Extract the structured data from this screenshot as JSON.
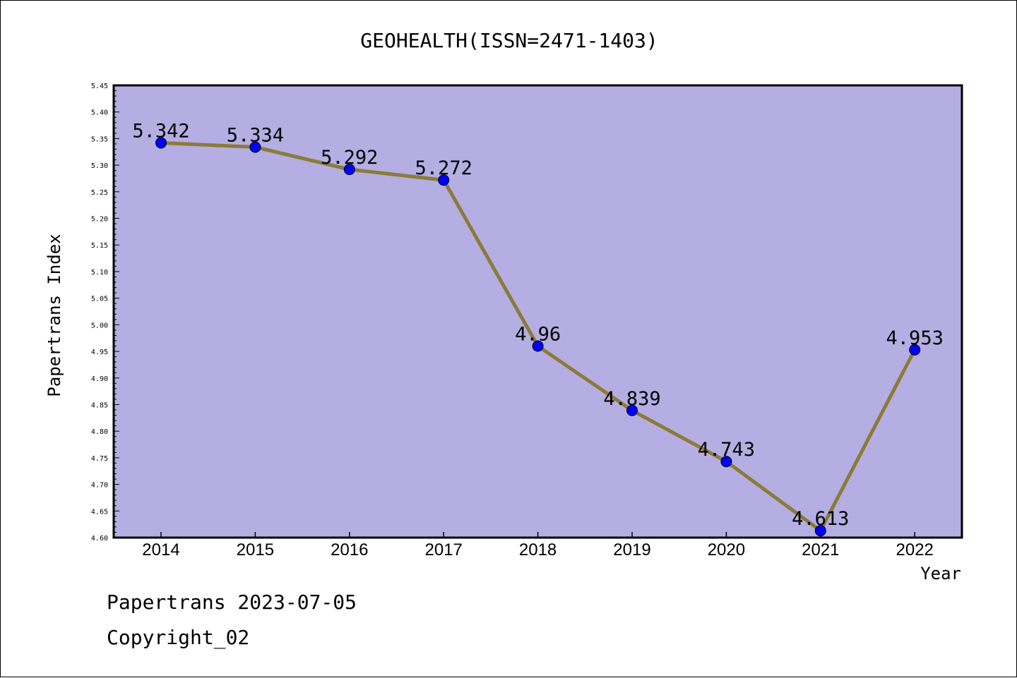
{
  "chart_data": {
    "type": "line",
    "title": "GEOHEALTH(ISSN=2471-1403)",
    "xlabel": "Year",
    "ylabel": "Papertrans Index",
    "categories": [
      "2014",
      "2015",
      "2016",
      "2017",
      "2018",
      "2019",
      "2020",
      "2021",
      "2022"
    ],
    "values": [
      5.342,
      5.334,
      5.292,
      5.272,
      4.96,
      4.839,
      4.743,
      4.613,
      4.953
    ],
    "data_labels": [
      "5.342",
      "5.334",
      "5.292",
      "5.272",
      "4.96",
      "4.839",
      "4.743",
      "4.613",
      "4.953"
    ],
    "ylim": [
      4.6,
      5.45
    ],
    "yticks": [
      "4.60",
      "4.65",
      "4.70",
      "4.75",
      "4.80",
      "4.85",
      "4.90",
      "4.95",
      "5.00",
      "5.05",
      "5.10",
      "5.15",
      "5.20",
      "5.25",
      "5.30",
      "5.35",
      "5.40",
      "5.45"
    ],
    "grid": false,
    "colors": {
      "plot_background": "#b5aee2",
      "line": "#8b7b3a",
      "marker": "#0000ff"
    }
  },
  "footer": {
    "line1": "Papertrans 2023-07-05",
    "line2": "Copyright_02"
  }
}
